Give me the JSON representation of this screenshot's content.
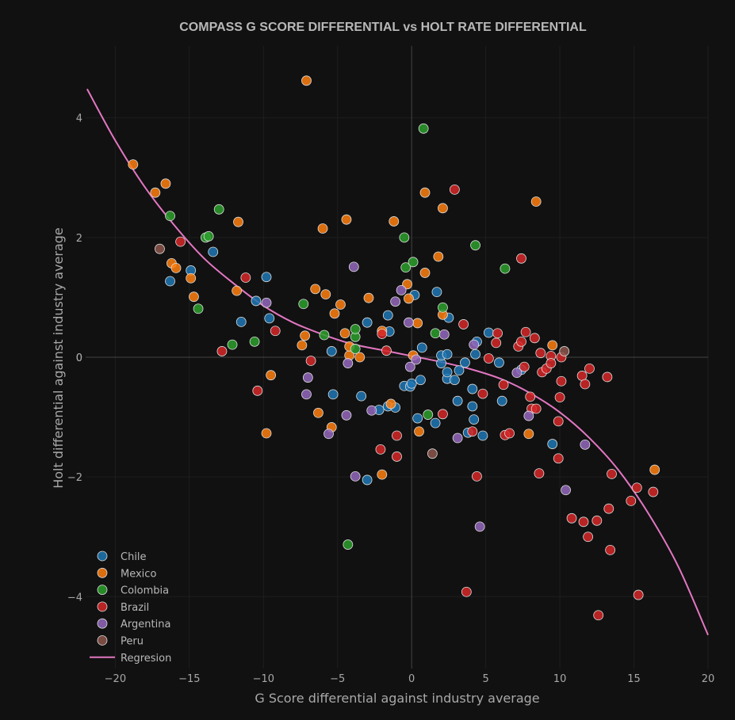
{
  "chart_data": {
    "type": "scatter",
    "title": "COMPASS G SCORE DIFFERENTIAL vs HOLT RATE DIFFERENTIAL",
    "xlabel": "G Score differential against industry average",
    "ylabel": "Holt differential against industry average",
    "xlim": [
      -22,
      20
    ],
    "ylim": [
      -5.2,
      5.2
    ],
    "xticks": [
      -20,
      -15,
      -10,
      -5,
      0,
      5,
      10,
      15,
      20
    ],
    "yticks": [
      -4,
      -2,
      0,
      2,
      4
    ],
    "grid": true,
    "legend_position": "bottom-left",
    "series": [
      {
        "name": "Chile",
        "color": "#1f77b4",
        "points": [
          [
            -16.3,
            1.27
          ],
          [
            -14.9,
            1.45
          ],
          [
            -13.4,
            1.76
          ],
          [
            -11.5,
            0.59
          ],
          [
            -10.5,
            0.94
          ],
          [
            -9.8,
            1.34
          ],
          [
            -9.6,
            0.65
          ],
          [
            -5.4,
            0.1
          ],
          [
            -5.3,
            -0.62
          ],
          [
            -3.4,
            -0.65
          ],
          [
            -3.0,
            0.58
          ],
          [
            -3.0,
            -2.05
          ],
          [
            -2.2,
            -0.88
          ],
          [
            -1.6,
            -0.82
          ],
          [
            -1.5,
            0.43
          ],
          [
            -1.1,
            -0.84
          ],
          [
            -1.6,
            0.7
          ],
          [
            -0.5,
            -0.48
          ],
          [
            -0.1,
            -0.49
          ],
          [
            0.0,
            -0.44
          ],
          [
            0.2,
            1.04
          ],
          [
            0.4,
            -1.02
          ],
          [
            0.6,
            -0.38
          ],
          [
            0.7,
            0.16
          ],
          [
            1.6,
            -1.1
          ],
          [
            1.7,
            1.09
          ],
          [
            2.0,
            -0.1
          ],
          [
            2.0,
            0.03
          ],
          [
            2.4,
            -0.36
          ],
          [
            2.4,
            -0.25
          ],
          [
            2.4,
            0.05
          ],
          [
            2.5,
            0.66
          ],
          [
            2.9,
            -0.38
          ],
          [
            3.1,
            -0.73
          ],
          [
            3.2,
            -0.22
          ],
          [
            3.6,
            -0.09
          ],
          [
            3.8,
            -1.26
          ],
          [
            4.1,
            -0.82
          ],
          [
            4.1,
            -0.53
          ],
          [
            4.2,
            -1.04
          ],
          [
            4.3,
            0.05
          ],
          [
            4.4,
            0.26
          ],
          [
            4.8,
            -1.31
          ],
          [
            5.2,
            0.41
          ],
          [
            5.9,
            -0.09
          ],
          [
            6.1,
            -0.73
          ],
          [
            7.4,
            -0.21
          ],
          [
            9.5,
            -1.45
          ]
        ]
      },
      {
        "name": "Mexico",
        "color": "#ff7f0e",
        "points": [
          [
            -18.8,
            3.22
          ],
          [
            -17.3,
            2.75
          ],
          [
            -16.6,
            2.9
          ],
          [
            -16.2,
            1.57
          ],
          [
            -15.9,
            1.49
          ],
          [
            -14.9,
            1.32
          ],
          [
            -14.7,
            1.01
          ],
          [
            -11.7,
            2.26
          ],
          [
            -11.8,
            1.11
          ],
          [
            -9.8,
            -1.27
          ],
          [
            -9.5,
            -0.3
          ],
          [
            -7.4,
            0.2
          ],
          [
            -7.2,
            0.36
          ],
          [
            -7.1,
            4.62
          ],
          [
            -6.5,
            1.14
          ],
          [
            -6.3,
            -0.93
          ],
          [
            -6.0,
            2.15
          ],
          [
            -5.8,
            1.05
          ],
          [
            -5.4,
            -1.17
          ],
          [
            -5.2,
            0.73
          ],
          [
            -4.8,
            0.88
          ],
          [
            -4.4,
            2.3
          ],
          [
            -4.5,
            0.4
          ],
          [
            -4.2,
            0.03
          ],
          [
            -4.2,
            0.18
          ],
          [
            -3.5,
            0.0
          ],
          [
            -2.9,
            0.99
          ],
          [
            -2.0,
            0.44
          ],
          [
            -2.0,
            -1.96
          ],
          [
            -1.4,
            -0.78
          ],
          [
            -1.2,
            2.27
          ],
          [
            -0.3,
            1.22
          ],
          [
            -0.2,
            0.98
          ],
          [
            0.1,
            0.03
          ],
          [
            0.4,
            0.57
          ],
          [
            0.5,
            -1.24
          ],
          [
            0.9,
            1.41
          ],
          [
            0.9,
            2.75
          ],
          [
            1.8,
            1.68
          ],
          [
            2.1,
            0.71
          ],
          [
            2.1,
            2.49
          ],
          [
            7.9,
            -1.28
          ],
          [
            8.4,
            2.6
          ],
          [
            9.5,
            0.2
          ],
          [
            16.4,
            -1.88
          ]
        ]
      },
      {
        "name": "Colombia",
        "color": "#2ca02c",
        "points": [
          [
            -16.3,
            2.36
          ],
          [
            -14.4,
            0.81
          ],
          [
            -13.9,
            2.0
          ],
          [
            -13.7,
            2.02
          ],
          [
            -13.0,
            2.47
          ],
          [
            -12.1,
            0.21
          ],
          [
            -10.6,
            0.26
          ],
          [
            -7.3,
            0.89
          ],
          [
            -5.9,
            0.37
          ],
          [
            -4.3,
            -3.13
          ],
          [
            -3.8,
            0.34
          ],
          [
            -3.8,
            0.47
          ],
          [
            -3.8,
            0.14
          ],
          [
            -0.5,
            2.0
          ],
          [
            -0.4,
            1.5
          ],
          [
            0.1,
            1.59
          ],
          [
            0.8,
            3.82
          ],
          [
            1.1,
            -0.96
          ],
          [
            1.6,
            0.4
          ],
          [
            2.1,
            0.83
          ],
          [
            4.3,
            1.87
          ],
          [
            6.3,
            1.48
          ]
        ]
      },
      {
        "name": "Brazil",
        "color": "#d62728",
        "points": [
          [
            -15.6,
            1.93
          ],
          [
            -12.8,
            0.1
          ],
          [
            -11.2,
            1.33
          ],
          [
            -10.4,
            -0.56
          ],
          [
            -9.2,
            0.44
          ],
          [
            -6.8,
            -0.06
          ],
          [
            -2.1,
            -1.54
          ],
          [
            -2.0,
            0.39
          ],
          [
            -1.7,
            0.11
          ],
          [
            -1.0,
            -1.31
          ],
          [
            -1.0,
            -1.66
          ],
          [
            2.1,
            -0.95
          ],
          [
            2.9,
            2.8
          ],
          [
            3.5,
            0.55
          ],
          [
            3.7,
            -3.92
          ],
          [
            4.1,
            -1.24
          ],
          [
            4.4,
            -1.99
          ],
          [
            4.8,
            -0.61
          ],
          [
            5.2,
            -0.02
          ],
          [
            5.7,
            0.24
          ],
          [
            5.8,
            0.4
          ],
          [
            6.2,
            -0.46
          ],
          [
            6.3,
            -1.3
          ],
          [
            6.6,
            -1.27
          ],
          [
            7.2,
            0.18
          ],
          [
            7.4,
            0.26
          ],
          [
            7.4,
            1.65
          ],
          [
            7.6,
            -0.16
          ],
          [
            7.7,
            0.42
          ],
          [
            8.0,
            -0.66
          ],
          [
            8.1,
            -0.86
          ],
          [
            8.3,
            0.32
          ],
          [
            8.4,
            -0.86
          ],
          [
            8.6,
            -1.94
          ],
          [
            8.7,
            0.07
          ],
          [
            8.8,
            -0.25
          ],
          [
            9.1,
            -0.19
          ],
          [
            9.4,
            0.02
          ],
          [
            9.4,
            -0.1
          ],
          [
            9.9,
            -1.69
          ],
          [
            9.9,
            -1.07
          ],
          [
            10.0,
            -0.67
          ],
          [
            10.1,
            -0.4
          ],
          [
            10.1,
            0.0
          ],
          [
            10.8,
            -2.69
          ],
          [
            11.5,
            -0.31
          ],
          [
            11.6,
            -2.75
          ],
          [
            11.7,
            -0.45
          ],
          [
            11.9,
            -3.0
          ],
          [
            12.0,
            -0.19
          ],
          [
            12.5,
            -2.73
          ],
          [
            12.6,
            -4.31
          ],
          [
            13.2,
            -0.33
          ],
          [
            13.3,
            -2.53
          ],
          [
            13.4,
            -3.22
          ],
          [
            13.5,
            -1.95
          ],
          [
            14.8,
            -2.4
          ],
          [
            15.2,
            -2.18
          ],
          [
            15.3,
            -3.97
          ],
          [
            16.3,
            -2.25
          ]
        ]
      },
      {
        "name": "Argentina",
        "color": "#9467bd",
        "points": [
          [
            -9.8,
            0.91
          ],
          [
            -7.1,
            -0.62
          ],
          [
            -7.0,
            -0.34
          ],
          [
            -5.6,
            -1.28
          ],
          [
            -4.4,
            -0.97
          ],
          [
            -4.3,
            -0.1
          ],
          [
            -3.9,
            1.51
          ],
          [
            -3.8,
            -1.99
          ],
          [
            -2.7,
            -0.89
          ],
          [
            -1.1,
            0.93
          ],
          [
            -0.2,
            0.58
          ],
          [
            -0.1,
            -0.16
          ],
          [
            0.3,
            -0.04
          ],
          [
            3.1,
            -1.35
          ],
          [
            4.2,
            0.21
          ],
          [
            4.6,
            -2.83
          ],
          [
            7.1,
            -0.26
          ],
          [
            7.9,
            -0.98
          ],
          [
            10.4,
            -2.22
          ],
          [
            11.7,
            -1.46
          ],
          [
            -0.7,
            1.12
          ],
          [
            2.2,
            0.38
          ]
        ]
      },
      {
        "name": "Peru",
        "color": "#8c564b",
        "points": [
          [
            -17.0,
            1.81
          ],
          [
            1.4,
            -1.61
          ],
          [
            10.3,
            0.1
          ]
        ]
      }
    ],
    "regression": {
      "name": "Regresion",
      "color": "#e377c2",
      "x": [
        -21.9,
        -20,
        -18,
        -16,
        -14,
        -12,
        -10,
        -8,
        -6,
        -4,
        -2,
        0,
        2,
        4,
        6,
        8,
        10,
        12,
        14,
        16,
        18,
        20
      ],
      "y": [
        4.48,
        3.62,
        2.84,
        2.2,
        1.65,
        1.23,
        0.86,
        0.58,
        0.38,
        0.22,
        0.12,
        0.02,
        -0.08,
        -0.2,
        -0.36,
        -0.6,
        -0.92,
        -1.35,
        -1.9,
        -2.62,
        -3.5,
        -4.64
      ]
    }
  }
}
